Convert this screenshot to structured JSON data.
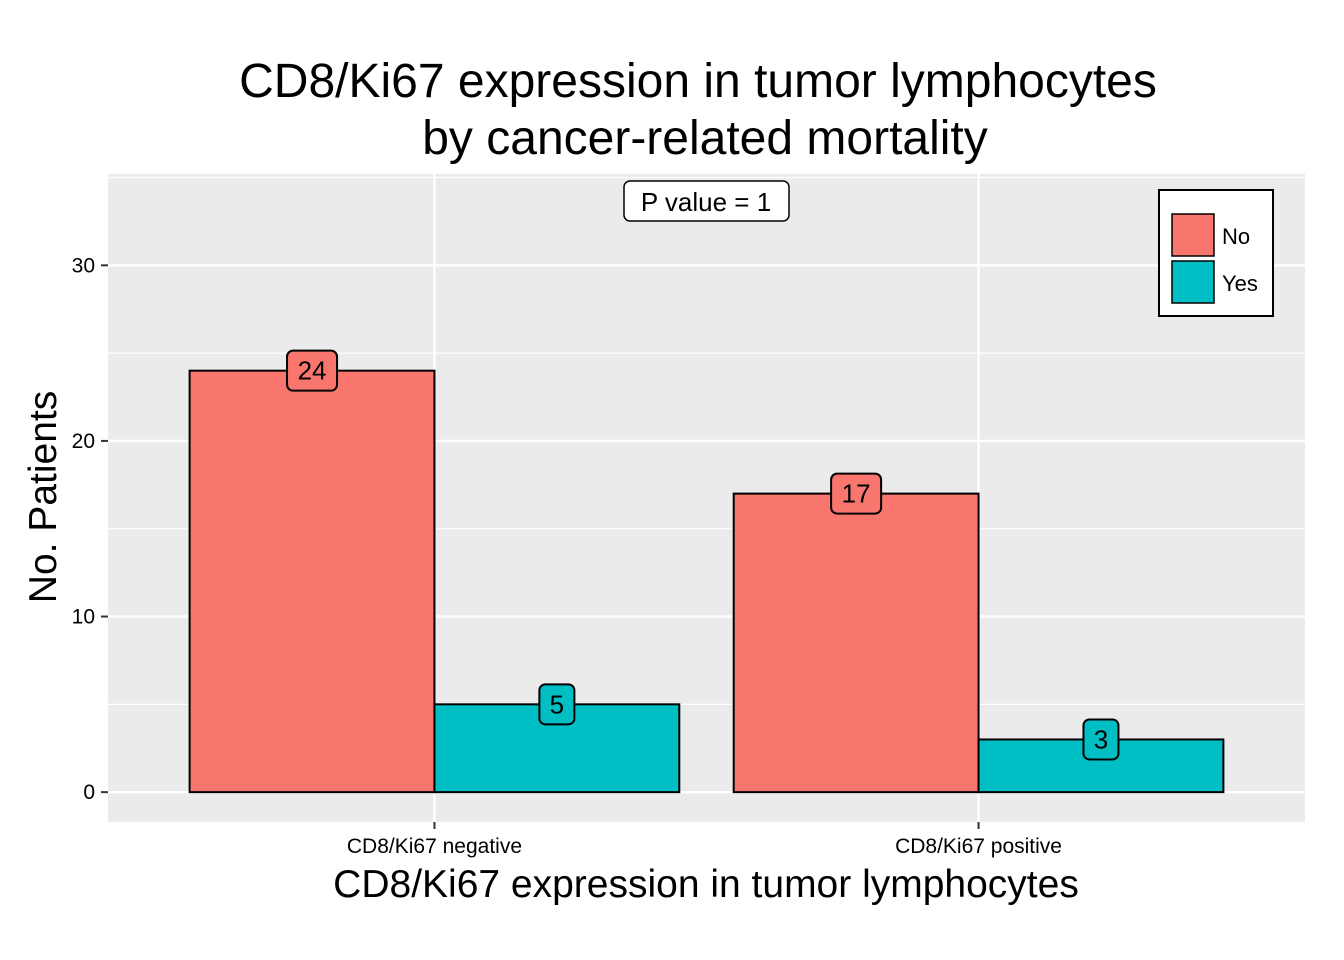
{
  "chart_data": {
    "type": "bar",
    "title": [
      "CD8/Ki67 expression in tumor lymphocytes",
      "by cancer-related mortality"
    ],
    "xlabel": "CD8/Ki67 expression in tumor lymphocytes",
    "ylabel": "No. Patients",
    "categories": [
      "CD8/Ki67 negative",
      "CD8/Ki67 positive"
    ],
    "series": [
      {
        "name": "No",
        "values": [
          24,
          17
        ],
        "color": "#F8766D"
      },
      {
        "name": "Yes",
        "values": [
          5,
          3
        ],
        "color": "#00BFC4"
      }
    ],
    "ylim": [
      -1.7,
      35.2
    ],
    "yticks": [
      0,
      10,
      20,
      30
    ],
    "grid": true,
    "annotation": "P value = 1",
    "legend_position": "top-right",
    "colors": {
      "panel_background": "#EBEBEB",
      "grid": "#FFFFFF",
      "bar_outline": "#000000"
    }
  }
}
